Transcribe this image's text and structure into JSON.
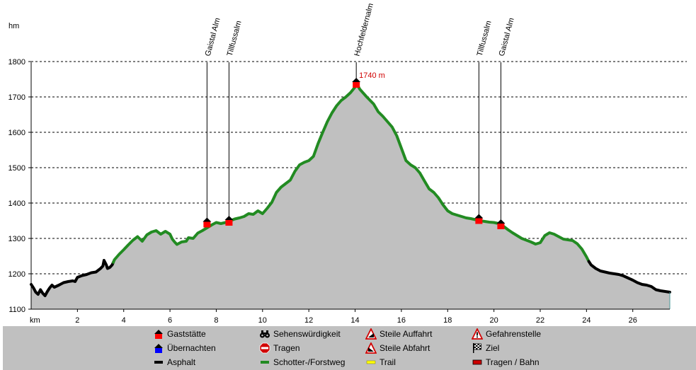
{
  "chart_data": {
    "type": "area",
    "title": "",
    "xlabel": "km",
    "ylabel": "hm",
    "xlim": [
      0,
      27.6
    ],
    "ylim": [
      1100,
      1800
    ],
    "x_ticks": [
      2,
      4,
      6,
      8,
      10,
      12,
      14,
      16,
      18,
      20,
      22,
      24,
      26
    ],
    "y_ticks": [
      1100,
      1200,
      1300,
      1400,
      1500,
      1600,
      1700,
      1800
    ],
    "grid": true,
    "fill_color": "#c0c0c0",
    "profile": [
      [
        0,
        1170
      ],
      [
        0.1,
        1160
      ],
      [
        0.2,
        1148
      ],
      [
        0.3,
        1142
      ],
      [
        0.4,
        1155
      ],
      [
        0.5,
        1145
      ],
      [
        0.6,
        1138
      ],
      [
        0.7,
        1150
      ],
      [
        0.8,
        1160
      ],
      [
        0.9,
        1168
      ],
      [
        1.0,
        1162
      ],
      [
        1.2,
        1168
      ],
      [
        1.4,
        1175
      ],
      [
        1.6,
        1178
      ],
      [
        1.8,
        1180
      ],
      [
        1.9,
        1178
      ],
      [
        2.0,
        1190
      ],
      [
        2.2,
        1195
      ],
      [
        2.4,
        1198
      ],
      [
        2.6,
        1203
      ],
      [
        2.8,
        1205
      ],
      [
        3.0,
        1215
      ],
      [
        3.1,
        1222
      ],
      [
        3.15,
        1238
      ],
      [
        3.25,
        1225
      ],
      [
        3.3,
        1215
      ],
      [
        3.4,
        1218
      ],
      [
        3.5,
        1225
      ],
      [
        3.6,
        1240
      ],
      [
        3.8,
        1255
      ],
      [
        4.0,
        1268
      ],
      [
        4.2,
        1282
      ],
      [
        4.4,
        1295
      ],
      [
        4.6,
        1305
      ],
      [
        4.8,
        1292
      ],
      [
        5.0,
        1310
      ],
      [
        5.2,
        1318
      ],
      [
        5.4,
        1322
      ],
      [
        5.6,
        1312
      ],
      [
        5.8,
        1320
      ],
      [
        6.0,
        1312
      ],
      [
        6.1,
        1298
      ],
      [
        6.2,
        1290
      ],
      [
        6.3,
        1283
      ],
      [
        6.5,
        1290
      ],
      [
        6.7,
        1292
      ],
      [
        6.8,
        1302
      ],
      [
        7.0,
        1300
      ],
      [
        7.2,
        1315
      ],
      [
        7.4,
        1322
      ],
      [
        7.6,
        1330
      ],
      [
        7.8,
        1338
      ],
      [
        8.0,
        1345
      ],
      [
        8.2,
        1342
      ],
      [
        8.4,
        1345
      ],
      [
        8.6,
        1350
      ],
      [
        8.8,
        1355
      ],
      [
        9.0,
        1358
      ],
      [
        9.2,
        1362
      ],
      [
        9.4,
        1370
      ],
      [
        9.6,
        1368
      ],
      [
        9.8,
        1378
      ],
      [
        10.0,
        1370
      ],
      [
        10.2,
        1385
      ],
      [
        10.4,
        1402
      ],
      [
        10.6,
        1430
      ],
      [
        10.8,
        1445
      ],
      [
        11.0,
        1455
      ],
      [
        11.2,
        1465
      ],
      [
        11.4,
        1490
      ],
      [
        11.6,
        1508
      ],
      [
        11.8,
        1515
      ],
      [
        12.0,
        1520
      ],
      [
        12.2,
        1532
      ],
      [
        12.4,
        1568
      ],
      [
        12.6,
        1600
      ],
      [
        12.8,
        1630
      ],
      [
        13.0,
        1655
      ],
      [
        13.2,
        1675
      ],
      [
        13.4,
        1690
      ],
      [
        13.6,
        1700
      ],
      [
        13.8,
        1712
      ],
      [
        14.0,
        1728
      ],
      [
        14.05,
        1740
      ],
      [
        14.2,
        1722
      ],
      [
        14.5,
        1700
      ],
      [
        14.8,
        1680
      ],
      [
        15.0,
        1658
      ],
      [
        15.2,
        1645
      ],
      [
        15.4,
        1630
      ],
      [
        15.6,
        1615
      ],
      [
        15.8,
        1590
      ],
      [
        16.0,
        1555
      ],
      [
        16.2,
        1520
      ],
      [
        16.4,
        1508
      ],
      [
        16.6,
        1500
      ],
      [
        16.8,
        1485
      ],
      [
        17.0,
        1462
      ],
      [
        17.2,
        1440
      ],
      [
        17.4,
        1430
      ],
      [
        17.6,
        1415
      ],
      [
        17.8,
        1395
      ],
      [
        18.0,
        1378
      ],
      [
        18.2,
        1370
      ],
      [
        18.4,
        1366
      ],
      [
        18.6,
        1362
      ],
      [
        18.8,
        1358
      ],
      [
        19.0,
        1356
      ],
      [
        19.2,
        1353
      ],
      [
        19.4,
        1350
      ],
      [
        19.6,
        1348
      ],
      [
        19.8,
        1346
      ],
      [
        20.0,
        1345
      ],
      [
        20.2,
        1342
      ],
      [
        20.4,
        1335
      ],
      [
        20.6,
        1325
      ],
      [
        20.8,
        1316
      ],
      [
        21.0,
        1308
      ],
      [
        21.2,
        1300
      ],
      [
        21.4,
        1295
      ],
      [
        21.6,
        1290
      ],
      [
        21.8,
        1284
      ],
      [
        22.0,
        1288
      ],
      [
        22.2,
        1308
      ],
      [
        22.4,
        1316
      ],
      [
        22.6,
        1312
      ],
      [
        22.8,
        1305
      ],
      [
        23.0,
        1298
      ],
      [
        23.2,
        1296
      ],
      [
        23.4,
        1294
      ],
      [
        23.6,
        1285
      ],
      [
        23.8,
        1270
      ],
      [
        24.0,
        1248
      ],
      [
        24.1,
        1235
      ],
      [
        24.2,
        1225
      ],
      [
        24.4,
        1215
      ],
      [
        24.6,
        1208
      ],
      [
        24.8,
        1205
      ],
      [
        25.0,
        1202
      ],
      [
        25.2,
        1200
      ],
      [
        25.4,
        1198
      ],
      [
        25.6,
        1194
      ],
      [
        25.8,
        1188
      ],
      [
        26.0,
        1182
      ],
      [
        26.2,
        1175
      ],
      [
        26.4,
        1170
      ],
      [
        26.6,
        1168
      ],
      [
        26.8,
        1164
      ],
      [
        27.0,
        1155
      ],
      [
        27.2,
        1152
      ],
      [
        27.4,
        1150
      ],
      [
        27.6,
        1148
      ]
    ],
    "segments": [
      {
        "surface": "asphalt",
        "from_km": 0,
        "to_km": 3.55
      },
      {
        "surface": "gravel",
        "from_km": 3.55,
        "to_km": 24.1
      },
      {
        "surface": "asphalt",
        "from_km": 24.1,
        "to_km": 27.6
      }
    ],
    "pois": [
      {
        "label": "Gaistal Alm",
        "km": 7.6,
        "elevation": 1345
      },
      {
        "label": "Tillfussalm",
        "km": 8.55,
        "elevation": 1350
      },
      {
        "label": "Hochfeldernalm",
        "km": 14.05,
        "elevation": 1740,
        "elevation_label": "1740 m"
      },
      {
        "label": "Tillfussalm",
        "km": 19.35,
        "elevation": 1355
      },
      {
        "label": "Gaistal Alm",
        "km": 20.3,
        "elevation": 1340
      }
    ]
  },
  "colors": {
    "gravel": "#228b22",
    "asphalt": "#000000",
    "trail": "#ffff00",
    "hut_roof": "#000000",
    "hut_body": "#ff0000",
    "overnight_body": "#0000ff",
    "carry": "#cc0000",
    "peak_label": "#d00000"
  },
  "legend": {
    "items": [
      {
        "label": "Gaststätte",
        "icon": "hut-icon"
      },
      {
        "label": "Übernachten",
        "icon": "overnight-icon"
      },
      {
        "label": "Asphalt",
        "icon": "asphalt-swatch"
      },
      {
        "label": "Sehenswürdigkeit",
        "icon": "binoculars-icon"
      },
      {
        "label": "Tragen",
        "icon": "stop-sign-icon"
      },
      {
        "label": "Schotter-/Forstweg",
        "icon": "gravel-swatch"
      },
      {
        "label": "Steile Auffahrt",
        "icon": "steep-ascent-icon"
      },
      {
        "label": "Steile Abfahrt",
        "icon": "steep-descent-icon"
      },
      {
        "label": "Trail",
        "icon": "trail-swatch"
      },
      {
        "label": "Gefahrenstelle",
        "icon": "warning-icon"
      },
      {
        "label": "Ziel",
        "icon": "checkered-flag-icon"
      },
      {
        "label": "Tragen / Bahn",
        "icon": "carry-train-swatch"
      }
    ]
  }
}
